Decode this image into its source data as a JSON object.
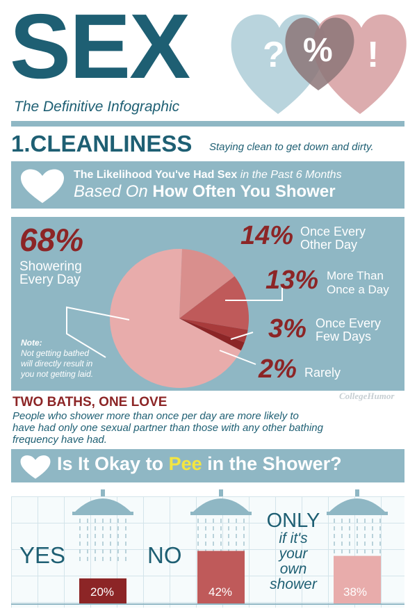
{
  "header": {
    "title": "SEX",
    "subtitle": "The Definitive Infographic",
    "hearts": [
      "?",
      "%",
      "!"
    ]
  },
  "section1": {
    "number_title": "1.CLEANLINESS",
    "tagline": "Staying clean to get down and dirty."
  },
  "banner1": {
    "part1": "The Likelihood You've Had Sex",
    "part2": "in the Past 6 Months",
    "part3": "Based On",
    "part4": "How Often You Shower"
  },
  "chart_data": {
    "type": "pie",
    "categories": [
      "Showering Every Day",
      "Once Every Other Day",
      "More Than Once a Day",
      "Once Every Few Days",
      "Rarely"
    ],
    "values": [
      68,
      14,
      13,
      3,
      2
    ],
    "colors": [
      "#e8acab",
      "#d98f8d",
      "#bf5a5a",
      "#a83b3b",
      "#8c2526"
    ]
  },
  "pie_labels": {
    "every_day": {
      "pct": "68%",
      "line1": "Showering",
      "line2": "Every Day"
    },
    "other_day": {
      "pct": "14%",
      "line1": "Once Every",
      "line2": "Other Day"
    },
    "more_than": {
      "pct": "13%",
      "line1": "More Than",
      "line2": "Once a Day"
    },
    "few_days": {
      "pct": "3%",
      "line1": "Once Every",
      "line2": "Few Days"
    },
    "rarely": {
      "pct": "2%",
      "line1": "Rarely"
    }
  },
  "note": {
    "title": "Note:",
    "line1": "Not getting bathed",
    "line2": "will directly result in",
    "line3": "you not getting laid."
  },
  "watermark": "CollegeHumor",
  "two_baths": {
    "heading": "TWO BATHS, ONE LOVE",
    "line1": "People who shower more than once per day are more likely to",
    "line2": "have had only one sexual partner than those with any other bathing",
    "line3": "frequency have had."
  },
  "banner2": {
    "part1": "Is It Okay to",
    "highlight": "Pee",
    "part2": "in the Shower?"
  },
  "pee": {
    "yes": {
      "label": "YES",
      "pct": "20%",
      "value": 20
    },
    "no": {
      "label": "NO",
      "pct": "42%",
      "value": 42
    },
    "only": {
      "label": "ONLY",
      "line1": "if it's",
      "line2": "your",
      "line3": "own",
      "line4": "shower",
      "pct": "38%",
      "value": 38
    }
  }
}
